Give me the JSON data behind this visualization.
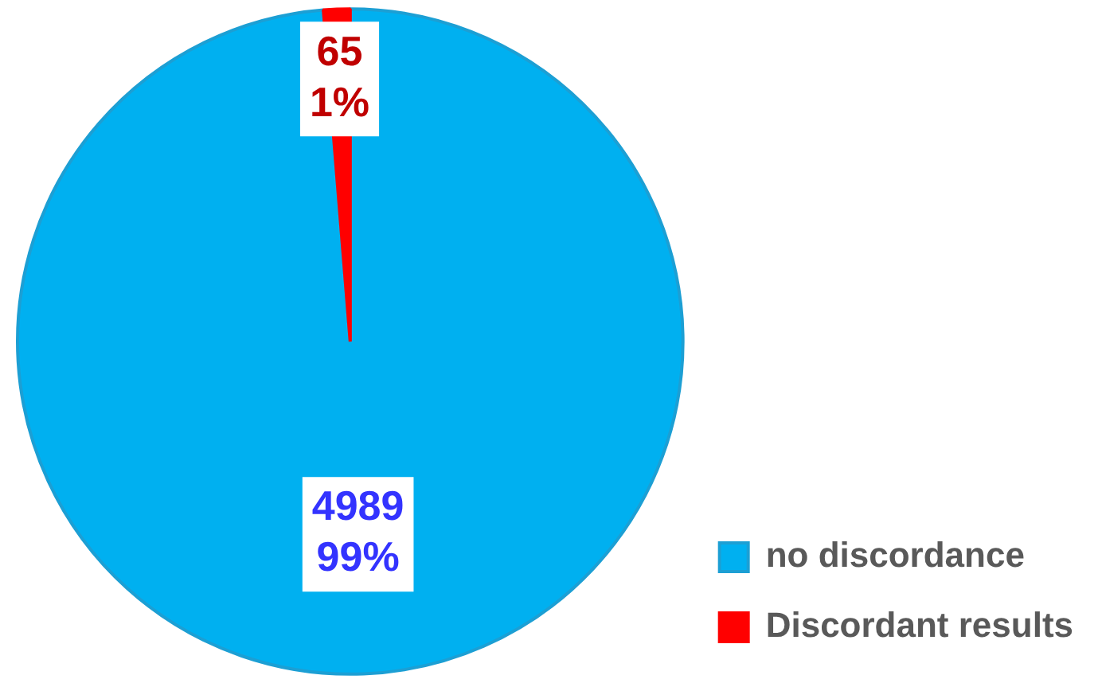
{
  "chart_data": {
    "type": "pie",
    "categories": [
      "no discordance",
      "Discordant results"
    ],
    "values": [
      4989,
      65
    ],
    "colors": [
      "#00b0f0",
      "#ff0000"
    ],
    "value_labels": [
      "4989\n99%",
      "65\n1%"
    ],
    "legend": "right"
  }
}
